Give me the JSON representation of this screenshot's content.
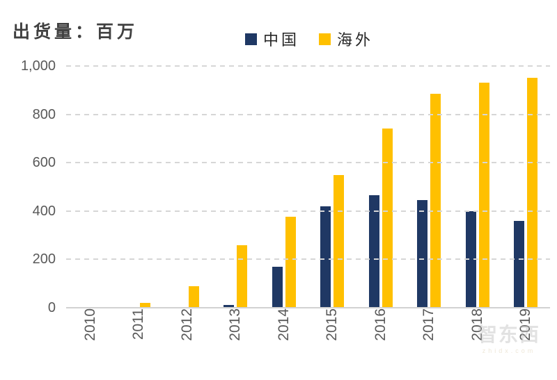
{
  "title": "出货量：百万",
  "legend": {
    "items": [
      {
        "label": "中国",
        "color": "#1f3864"
      },
      {
        "label": "海外",
        "color": "#ffc000"
      }
    ]
  },
  "watermark": {
    "logo": "智东西",
    "url": "zhidx.com"
  },
  "chart_data": {
    "type": "bar",
    "title": "出货量：百万",
    "categories": [
      "2010",
      "2011",
      "2012",
      "2013",
      "2014",
      "2015",
      "2016",
      "2017",
      "2018",
      "2019"
    ],
    "series": [
      {
        "name": "中国",
        "color": "#1f3864",
        "values": [
          0,
          1,
          3,
          12,
          170,
          420,
          465,
          445,
          400,
          360
        ]
      },
      {
        "name": "海外",
        "color": "#ffc000",
        "values": [
          2,
          20,
          90,
          260,
          375,
          550,
          740,
          885,
          930,
          950
        ]
      }
    ],
    "ylim": [
      0,
      1000
    ],
    "ytick_labels": [
      "1,000",
      "800",
      "600",
      "400",
      "200",
      "0"
    ],
    "ytick_values": [
      1000,
      800,
      600,
      400,
      200,
      0
    ],
    "grid": "horizontal-dashed",
    "legend_position": "top-center",
    "x_label_rotation": -90
  }
}
